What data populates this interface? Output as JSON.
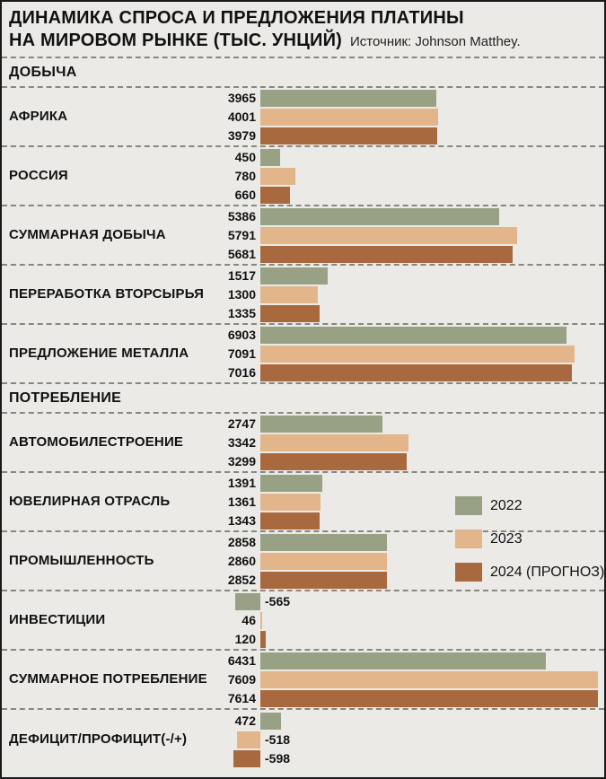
{
  "header": {
    "title_line1": "ДИНАМИКА СПРОСА И ПРЕДЛОЖЕНИЯ ПЛАТИНЫ",
    "title_line2": "НА МИРОВОМ РЫНКЕ (ТЫС. УНЦИЙ)",
    "source": "Источник: Johnson Matthey."
  },
  "legend": [
    {
      "label": "2022",
      "color": "#99a184"
    },
    {
      "label": "2023",
      "color": "#e2b58a"
    },
    {
      "label": "2024 (ПРОГНОЗ)",
      "color": "#a9693f"
    }
  ],
  "chart_data": {
    "type": "bar",
    "orientation": "horizontal",
    "title": "ДИНАМИКА СПРОСА И ПРЕДЛОЖЕНИЯ ПЛАТИНЫ НА МИРОВОМ РЫНКЕ (ТЫС. УНЦИЙ)",
    "source": "Источник: Johnson Matthey.",
    "unit": "тыс. унций",
    "xlim": [
      -700,
      7700
    ],
    "grid": false,
    "legend_position": "middle-right",
    "series_names": [
      "2022",
      "2023",
      "2024 (ПРОГНОЗ)"
    ],
    "series_colors": [
      "#99a184",
      "#e2b58a",
      "#a9693f"
    ],
    "sections": [
      {
        "title": "ДОБЫЧА",
        "rows": [
          {
            "label": "АФРИКА",
            "values": [
              3965,
              4001,
              3979
            ]
          },
          {
            "label": "РОССИЯ",
            "values": [
              450,
              780,
              660
            ]
          },
          {
            "label": "СУММАРНАЯ ДОБЫЧА",
            "values": [
              5386,
              5791,
              5681
            ]
          },
          {
            "label": "ПЕРЕРАБОТКА ВТОРСЫРЬЯ",
            "values": [
              1517,
              1300,
              1335
            ]
          },
          {
            "label": "ПРЕДЛОЖЕНИЕ МЕТАЛЛА",
            "values": [
              6903,
              7091,
              7016
            ]
          }
        ]
      },
      {
        "title": "ПОТРЕБЛЕНИЕ",
        "rows": [
          {
            "label": "АВТОМОБИЛЕСТРОЕНИЕ",
            "values": [
              2747,
              3342,
              3299
            ]
          },
          {
            "label": "ЮВЕЛИРНАЯ ОТРАСЛЬ",
            "values": [
              1391,
              1361,
              1343
            ]
          },
          {
            "label": "ПРОМЫШЛЕННОСТЬ",
            "values": [
              2858,
              2860,
              2852
            ]
          },
          {
            "label": "ИНВЕСТИЦИИ",
            "values": [
              -565,
              46,
              120
            ]
          },
          {
            "label": "СУММАРНОЕ ПОТРЕБЛЕНИЕ",
            "values": [
              6431,
              7609,
              7614
            ]
          },
          {
            "label": "ДЕФИЦИТ/ПРОФИЦИТ(-/+)",
            "values": [
              472,
              -518,
              -598
            ]
          }
        ]
      }
    ]
  }
}
